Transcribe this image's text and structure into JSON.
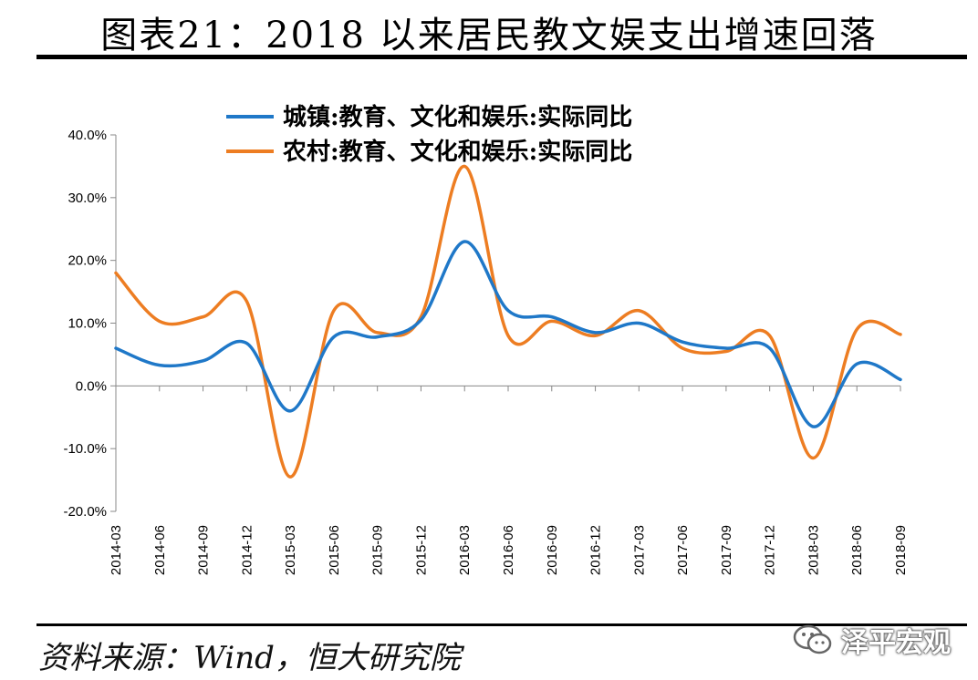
{
  "title": "图表21：2018 以来居民教文娱支出增速回落",
  "source": "资料来源：Wind，恒大研究院",
  "watermark": "泽平宏观",
  "chart_data": {
    "type": "line",
    "categories": [
      "2014-03",
      "2014-06",
      "2014-09",
      "2014-12",
      "2015-03",
      "2015-06",
      "2015-09",
      "2015-12",
      "2016-03",
      "2016-06",
      "2016-09",
      "2016-12",
      "2017-03",
      "2017-06",
      "2017-09",
      "2017-12",
      "2018-03",
      "2018-06",
      "2018-09"
    ],
    "ylim": [
      -20,
      40
    ],
    "yticks": [
      40,
      30,
      20,
      10,
      0,
      -10,
      -20
    ],
    "ytick_labels": [
      "40.0%",
      "30.0%",
      "20.0%",
      "10.0%",
      "0.0%",
      "-10.0%",
      "-20.0%"
    ],
    "legend_position": "top",
    "series": [
      {
        "name": "城镇:教育、文化和娱乐:实际同比",
        "color": "#1f78c8",
        "values": [
          6.0,
          3.3,
          4.0,
          6.8,
          -4.0,
          7.8,
          7.8,
          10.5,
          23.0,
          12.0,
          11.0,
          8.5,
          10.0,
          7.0,
          6.0,
          6.0,
          -6.5,
          3.5,
          1.0
        ]
      },
      {
        "name": "农村:教育、文化和娱乐:实际同比",
        "color": "#ed7d22",
        "values": [
          18.0,
          10.3,
          11.0,
          13.5,
          -14.5,
          12.0,
          8.5,
          11.0,
          35.0,
          8.0,
          10.3,
          8.0,
          12.0,
          6.0,
          5.5,
          8.0,
          -11.5,
          9.0,
          8.2
        ]
      }
    ]
  }
}
